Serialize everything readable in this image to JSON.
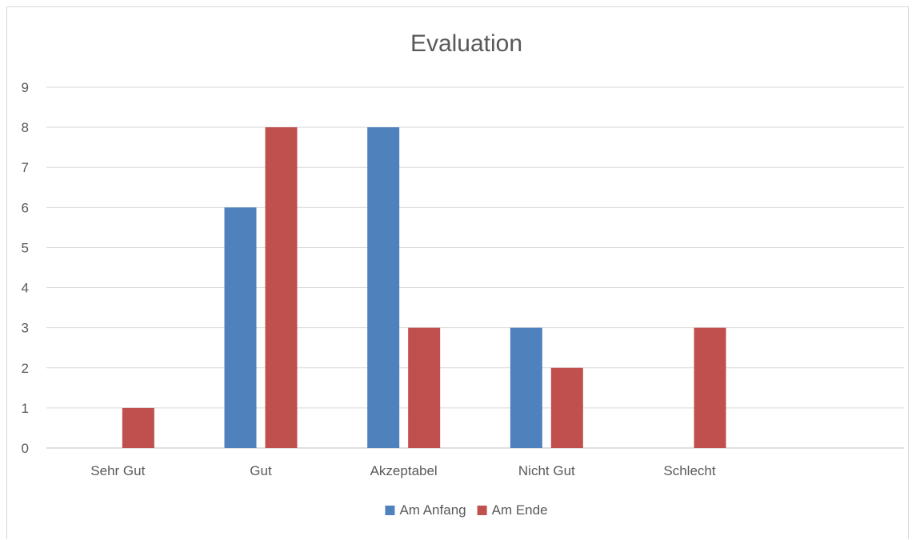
{
  "chart_data": {
    "type": "bar",
    "title": "Evaluation",
    "xlabel": "",
    "ylabel": "",
    "categories": [
      "Sehr Gut",
      "Gut",
      "Akzeptabel",
      "Nicht Gut",
      "Schlecht"
    ],
    "series": [
      {
        "name": "Am Anfang",
        "values": [
          0,
          6,
          8,
          3,
          0
        ],
        "color": "#4f81bd"
      },
      {
        "name": "Am Ende",
        "values": [
          1,
          8,
          3,
          2,
          3
        ],
        "color": "#c0504d"
      }
    ],
    "ylim": [
      0,
      9
    ],
    "yticks": [
      0,
      1,
      2,
      3,
      4,
      5,
      6,
      7,
      8,
      9
    ],
    "grid": true,
    "legend_position": "bottom",
    "extra_empty_category_slots": 1
  }
}
